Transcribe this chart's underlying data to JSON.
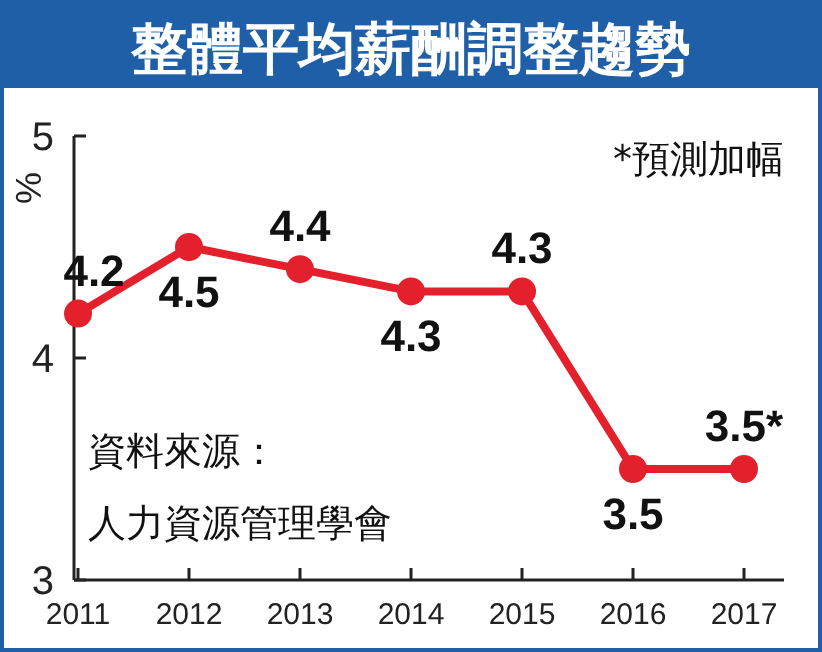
{
  "chart_data": {
    "type": "line",
    "title": "整體平均薪酬調整趨勢",
    "ylabel": "%",
    "categories": [
      "2011",
      "2012",
      "2013",
      "2014",
      "2015",
      "2016",
      "2017"
    ],
    "series": [
      {
        "color": "#e3202b",
        "values": [
          4.2,
          4.5,
          4.4,
          4.3,
          4.3,
          3.5,
          3.5
        ],
        "value_labels": [
          "4.2",
          "4.5",
          "4.4",
          "4.3",
          "4.3",
          "3.5",
          "3.5*"
        ]
      }
    ],
    "ylim": [
      3,
      5
    ],
    "yticks": [
      3,
      4,
      5
    ],
    "marker": "circle",
    "annotations": [
      "*預測加幅",
      "資料來源：",
      "人力資源管理學會"
    ]
  }
}
